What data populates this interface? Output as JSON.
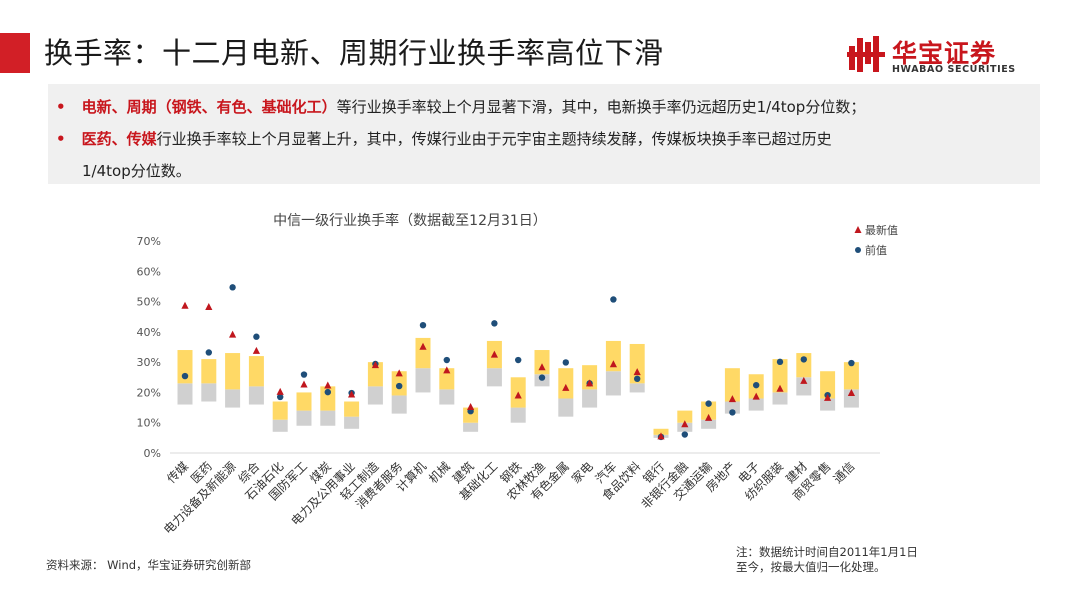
{
  "header": {
    "title": "换手率：十二月电新、周期行业换手率高位下滑",
    "logo_cn": "华宝证券",
    "logo_en": "HWABAO SECURITIES"
  },
  "bullets": {
    "b1_hl": "电新、周期（钢铁、有色、基础化工）",
    "b1_rest": "等行业换手率较上个月显著下滑，其中，电新换手率仍远超历史1/4top分位数；",
    "b2_hl": "医药、传媒",
    "b2_rest": "行业换手率较上个月显著上升，其中，传媒行业由于元宇宙主题持续发酵，传媒板块换手率已超过历史",
    "b2_cont": "1/4top分位数。"
  },
  "footer": {
    "source": "资料来源： Wind，华宝证券研究创新部",
    "note_line1": "注：数据统计时间自2011年1月1日",
    "note_line2": "至今，按最大值归一化处理。"
  },
  "colors": {
    "accent": "#d21f26",
    "band_top": "#ffd966",
    "band_bottom": "#d0d0d0",
    "latest_marker": "#c0171e",
    "prev_marker": "#1f4e79"
  },
  "chart_data": {
    "type": "scatter",
    "title": "中信一级行业换手率（数据截至12月31日）",
    "ylim": [
      0,
      70
    ],
    "yticks": [
      "0%",
      "10%",
      "20%",
      "30%",
      "40%",
      "50%",
      "60%",
      "70%"
    ],
    "legend": [
      "最新值",
      "前值"
    ],
    "legend_position": "top-right",
    "categories": [
      "传媒",
      "医药",
      "电力设备及新能源",
      "综合",
      "石油石化",
      "国防军工",
      "煤炭",
      "电力及公用事业",
      "轻工制造",
      "消费者服务",
      "计算机",
      "机械",
      "建筑",
      "基础化工",
      "钢铁",
      "农林牧渔",
      "有色金属",
      "家电",
      "汽车",
      "食品饮料",
      "银行",
      "非银行金融",
      "交通运输",
      "房地产",
      "电子",
      "纺织服装",
      "建材",
      "商贸零售",
      "通信"
    ],
    "band_bottom": [
      16,
      17,
      15,
      16,
      7,
      9,
      9,
      8,
      16,
      13,
      20,
      16,
      7,
      22,
      10,
      22,
      12,
      15,
      19,
      20,
      5,
      7,
      8,
      13,
      14,
      16,
      19,
      14,
      15
    ],
    "band_median": [
      23,
      23,
      21,
      22,
      11,
      14,
      14,
      12,
      22,
      19,
      28,
      21,
      10,
      28,
      15,
      26,
      18,
      21,
      27,
      23,
      6,
      10,
      11,
      17,
      18,
      20,
      25,
      18,
      21
    ],
    "band_top": [
      34,
      31,
      33,
      32,
      17,
      20,
      22,
      17,
      30,
      27,
      38,
      28,
      15,
      37,
      25,
      34,
      28,
      29,
      37,
      36,
      8,
      14,
      17,
      28,
      26,
      31,
      33,
      27,
      30
    ],
    "latest": [
      48.6,
      48.2,
      39.1,
      33.7,
      20.2,
      22.6,
      22.3,
      19.3,
      29.0,
      26.3,
      35.1,
      27.3,
      15.2,
      32.5,
      19.0,
      28.3,
      21.5,
      23.0,
      29.3,
      26.7,
      5.5,
      9.5,
      11.6,
      17.8,
      18.6,
      21.2,
      23.8,
      18.2,
      19.8
    ],
    "previous": [
      25.4,
      33.2,
      54.7,
      38.4,
      18.5,
      25.9,
      20.1,
      19.8,
      29.4,
      22.1,
      42.2,
      30.7,
      13.8,
      42.8,
      30.7,
      24.9,
      29.9,
      23.0,
      50.7,
      24.5,
      5.3,
      6.1,
      16.3,
      13.4,
      22.4,
      30.1,
      30.9,
      19.1,
      29.7
    ]
  }
}
